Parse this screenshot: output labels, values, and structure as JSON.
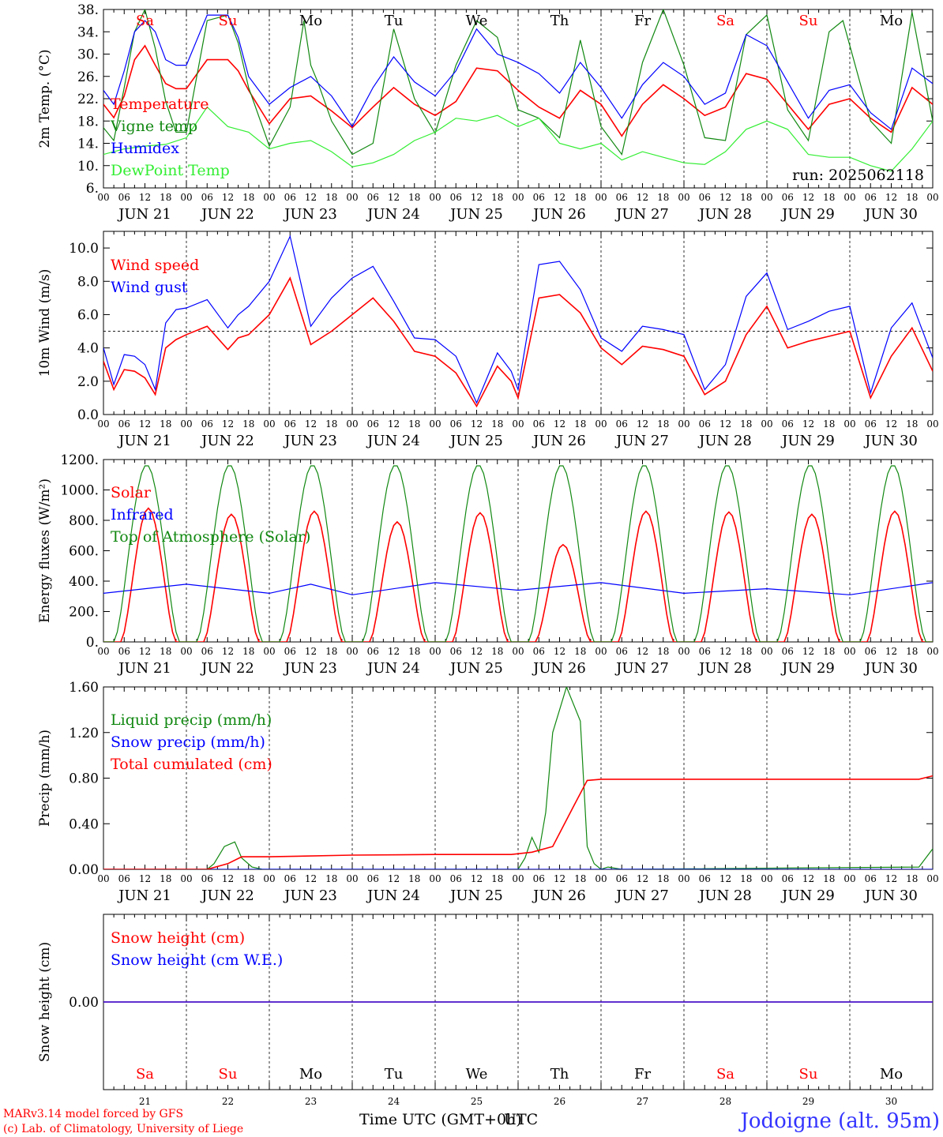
{
  "footer": {
    "model": "MARv3.14 model forced by GFS",
    "copyright": "(c) Lab. of Climatology, University of Liege",
    "xaxis_title": "Time UTC (GMT+0h)",
    "xaxis_overlap": "UTC",
    "location": "Jodoigne (alt. 95m)"
  },
  "colors": {
    "red": "#ff0000",
    "green": "#118811",
    "blue": "#0000ff",
    "lightgreen": "#33ee33",
    "black": "#000000"
  },
  "time_axis": {
    "hour_ticks": [
      "00",
      "06",
      "12",
      "18"
    ],
    "end_hour": "00",
    "dates": [
      "JUN 21",
      "JUN 22",
      "JUN 23",
      "JUN 24",
      "JUN 25",
      "JUN 26",
      "JUN 27",
      "JUN 28",
      "JUN 29",
      "JUN 30"
    ],
    "day_numbers": [
      "21",
      "22",
      "23",
      "24",
      "25",
      "26",
      "27",
      "28",
      "29",
      "30"
    ],
    "day_names": [
      "Sa",
      "Su",
      "Mo",
      "Tu",
      "We",
      "Th",
      "Fr",
      "Sa",
      "Su",
      "Mo"
    ],
    "weekend": [
      true,
      true,
      false,
      false,
      false,
      false,
      false,
      true,
      true,
      false
    ]
  },
  "chart_data": [
    {
      "type": "line",
      "ylabel": "2m Temp. (°C)",
      "ylim": [
        6,
        38
      ],
      "yticks": [
        "6.",
        "10.",
        "14.",
        "18.",
        "22.",
        "26.",
        "30.",
        "34.",
        "38."
      ],
      "annotation": "run: 2025062118",
      "x_unit": "hours since JUN 21 00 UTC",
      "series": [
        {
          "name": "Temperature",
          "color": "red",
          "x": [
            0,
            3,
            6,
            9,
            12,
            15,
            18,
            21,
            24,
            30,
            36,
            39,
            42,
            48,
            54,
            60,
            66,
            72,
            78,
            84,
            90,
            96,
            102,
            108,
            114,
            120,
            126,
            132,
            138,
            144,
            150,
            156,
            162,
            168,
            174,
            180,
            186,
            192,
            198,
            204,
            210,
            216,
            222,
            228,
            234,
            240
          ],
          "y": [
            21.0,
            18.6,
            22.5,
            29.0,
            31.5,
            28.0,
            24.7,
            23.8,
            23.8,
            29.0,
            29.0,
            27.0,
            23.5,
            17.5,
            22.0,
            22.5,
            19.8,
            16.8,
            20.5,
            24.0,
            21.0,
            19.0,
            21.5,
            27.5,
            27.0,
            23.5,
            20.5,
            18.5,
            23.5,
            21.0,
            15.3,
            21.0,
            24.5,
            22.0,
            19.0,
            20.5,
            26.5,
            25.5,
            21.0,
            16.5,
            21.0,
            22.0,
            18.5,
            16.0,
            24.0,
            21.0
          ]
        },
        {
          "name": "Vigne temp",
          "color": "green",
          "x": [
            0,
            3,
            6,
            9,
            12,
            15,
            18,
            21,
            24,
            30,
            36,
            39,
            42,
            48,
            54,
            58,
            60,
            62,
            66,
            72,
            78,
            84,
            90,
            96,
            102,
            108,
            114,
            120,
            126,
            132,
            138,
            144,
            150,
            156,
            162,
            168,
            174,
            180,
            186,
            192,
            198,
            204,
            210,
            214,
            222,
            228,
            234,
            240
          ],
          "y": [
            16.8,
            14.5,
            24.0,
            34.0,
            38.0,
            31.0,
            21.5,
            16.0,
            16.0,
            36.0,
            37.0,
            32.0,
            24.0,
            13.5,
            20.5,
            36.0,
            28.0,
            25.0,
            18.0,
            12.0,
            14.0,
            34.5,
            22.0,
            15.8,
            28.0,
            36.0,
            33.0,
            20.0,
            18.5,
            15.0,
            32.5,
            17.0,
            12.0,
            28.5,
            38.0,
            28.0,
            15.0,
            14.5,
            33.5,
            37.0,
            20.0,
            14.5,
            34.0,
            36.0,
            18.0,
            14.0,
            37.5,
            18.0
          ]
        },
        {
          "name": "Humidex",
          "color": "blue",
          "x": [
            0,
            3,
            6,
            9,
            12,
            15,
            18,
            21,
            24,
            30,
            36,
            39,
            42,
            48,
            54,
            60,
            66,
            72,
            78,
            84,
            90,
            96,
            102,
            108,
            114,
            120,
            126,
            132,
            138,
            144,
            150,
            156,
            162,
            168,
            174,
            180,
            186,
            192,
            198,
            204,
            210,
            216,
            222,
            228,
            234,
            240
          ],
          "y": [
            23.5,
            21.0,
            27.0,
            34.0,
            36.0,
            34.0,
            29.0,
            28.0,
            28.0,
            37.0,
            37.0,
            33.0,
            26.0,
            21.0,
            24.0,
            26.0,
            22.5,
            17.0,
            24.0,
            29.5,
            25.0,
            22.5,
            27.0,
            34.5,
            30.0,
            28.5,
            26.5,
            23.0,
            28.5,
            24.0,
            18.5,
            24.5,
            28.5,
            26.0,
            21.0,
            23.0,
            33.5,
            31.5,
            25.0,
            18.5,
            23.5,
            24.5,
            19.5,
            16.5,
            27.5,
            24.7
          ]
        },
        {
          "name": "DewPoint Temp",
          "color": "lightgreen",
          "x": [
            0,
            6,
            12,
            18,
            24,
            30,
            36,
            42,
            48,
            54,
            60,
            66,
            72,
            78,
            84,
            90,
            96,
            102,
            108,
            114,
            120,
            126,
            132,
            138,
            144,
            150,
            156,
            162,
            168,
            174,
            180,
            186,
            192,
            198,
            204,
            210,
            216,
            222,
            228,
            234,
            240
          ],
          "y": [
            12.0,
            13.0,
            13.5,
            13.8,
            15.0,
            20.5,
            17.0,
            16.0,
            13.0,
            14.0,
            14.5,
            12.5,
            9.8,
            10.5,
            12.0,
            14.5,
            16.0,
            18.5,
            18.0,
            19.0,
            17.0,
            18.5,
            14.0,
            13.0,
            14.0,
            11.0,
            12.5,
            11.5,
            10.5,
            10.2,
            12.5,
            16.5,
            18.0,
            16.5,
            12.0,
            11.5,
            11.5,
            10.0,
            9.0,
            13.0,
            18.0
          ]
        }
      ]
    },
    {
      "type": "line",
      "ylabel": "10m Wind (m/s)",
      "ylim": [
        0,
        11
      ],
      "yticks": [
        "0.0",
        "2.0",
        "4.0",
        "6.0",
        "8.0",
        "10.0"
      ],
      "reference_line": 5.0,
      "series": [
        {
          "name": "Wind speed",
          "color": "red",
          "x": [
            0,
            3,
            6,
            9,
            12,
            15,
            18,
            21,
            24,
            30,
            36,
            39,
            42,
            48,
            54,
            60,
            66,
            72,
            78,
            84,
            90,
            96,
            102,
            108,
            114,
            118,
            120,
            126,
            132,
            138,
            144,
            150,
            156,
            162,
            168,
            174,
            180,
            186,
            192,
            198,
            204,
            210,
            216,
            222,
            228,
            234,
            240
          ],
          "y": [
            3.2,
            1.5,
            2.7,
            2.6,
            2.2,
            1.2,
            4.0,
            4.5,
            4.8,
            5.3,
            3.9,
            4.6,
            4.8,
            6.0,
            8.2,
            4.2,
            5.0,
            6.0,
            7.0,
            5.6,
            3.8,
            3.5,
            2.5,
            0.5,
            2.9,
            2.0,
            1.0,
            7.0,
            7.2,
            6.1,
            4.0,
            3.0,
            4.1,
            3.9,
            3.5,
            1.2,
            2.0,
            4.8,
            6.5,
            4.0,
            4.4,
            4.7,
            5.0,
            1.0,
            3.5,
            5.2,
            2.6
          ]
        },
        {
          "name": "Wind gust",
          "color": "blue",
          "x": [
            0,
            3,
            6,
            9,
            12,
            15,
            18,
            21,
            24,
            30,
            36,
            39,
            42,
            48,
            54,
            60,
            66,
            72,
            78,
            84,
            90,
            96,
            102,
            108,
            114,
            118,
            120,
            126,
            132,
            138,
            144,
            150,
            156,
            162,
            168,
            174,
            180,
            186,
            192,
            198,
            204,
            210,
            216,
            222,
            228,
            234,
            240
          ],
          "y": [
            4.0,
            1.8,
            3.6,
            3.5,
            3.0,
            1.5,
            5.5,
            6.3,
            6.4,
            6.9,
            5.2,
            6.0,
            6.5,
            8.0,
            10.7,
            5.3,
            7.0,
            8.2,
            8.9,
            6.8,
            4.6,
            4.5,
            3.5,
            0.7,
            3.7,
            2.6,
            1.5,
            9.0,
            9.2,
            7.5,
            4.6,
            3.8,
            5.3,
            5.1,
            4.8,
            1.5,
            3.0,
            7.1,
            8.5,
            5.1,
            5.6,
            6.2,
            6.5,
            1.3,
            5.2,
            6.7,
            3.4
          ]
        }
      ]
    },
    {
      "type": "line",
      "ylabel": "Energy fluxes (W/m²)",
      "ylim": [
        0,
        1200
      ],
      "yticks": [
        "0.",
        "200.",
        "400.",
        "600.",
        "800.",
        "1000.",
        "1200."
      ],
      "series": [
        {
          "name": "Solar",
          "color": "red",
          "day_peaks": [
            880,
            840,
            860,
            790,
            850,
            640,
            860,
            855,
            840,
            860
          ]
        },
        {
          "name": "Infrared",
          "color": "blue",
          "x": [
            0,
            24,
            48,
            60,
            72,
            96,
            120,
            144,
            168,
            192,
            216,
            240
          ],
          "y": [
            320,
            380,
            320,
            380,
            310,
            390,
            340,
            390,
            320,
            350,
            310,
            390
          ]
        },
        {
          "name": "Top of Atmosphere (Solar)",
          "color": "green",
          "day_peak": 1165
        }
      ]
    },
    {
      "type": "line",
      "ylabel": "Precip (mm/h)",
      "ylim": [
        0,
        1.6
      ],
      "yticks": [
        "0.00",
        "0.40",
        "0.80",
        "1.20",
        "1.60"
      ],
      "series": [
        {
          "name": "Liquid precip (mm/h)",
          "color": "green",
          "x": [
            0,
            30,
            32,
            35,
            38,
            40,
            43,
            46,
            120,
            122,
            124,
            126,
            128,
            130,
            134,
            138,
            140,
            142,
            144,
            146,
            150,
            236,
            240
          ],
          "y": [
            0,
            0,
            0.05,
            0.2,
            0.24,
            0.1,
            0.02,
            0,
            0,
            0.1,
            0.28,
            0.15,
            0.5,
            1.2,
            1.6,
            1.3,
            0.2,
            0.05,
            0.0,
            0.02,
            0,
            0.02,
            0.18
          ]
        },
        {
          "name": "Snow precip (mm/h)",
          "color": "blue",
          "x": [
            0,
            240
          ],
          "y": [
            0,
            0
          ]
        },
        {
          "name": "Total cumulated (cm)",
          "color": "red",
          "x": [
            0,
            30,
            36,
            40,
            48,
            72,
            96,
            118,
            124,
            130,
            136,
            140,
            144,
            168,
            192,
            216,
            236,
            240
          ],
          "y": [
            0,
            0,
            0.05,
            0.11,
            0.11,
            0.125,
            0.13,
            0.13,
            0.15,
            0.2,
            0.55,
            0.78,
            0.79,
            0.79,
            0.79,
            0.79,
            0.79,
            0.82
          ]
        }
      ]
    },
    {
      "type": "line",
      "ylabel": "Snow height (cm)",
      "ylim": [
        -1,
        1
      ],
      "yticks": [
        "0.00"
      ],
      "series": [
        {
          "name": "Snow height (cm)",
          "color": "red",
          "x": [
            0,
            240
          ],
          "y": [
            0,
            0
          ]
        },
        {
          "name": "Snow height (cm W.E.)",
          "color": "blue",
          "x": [
            0,
            240
          ],
          "y": [
            0,
            0
          ]
        }
      ]
    }
  ]
}
